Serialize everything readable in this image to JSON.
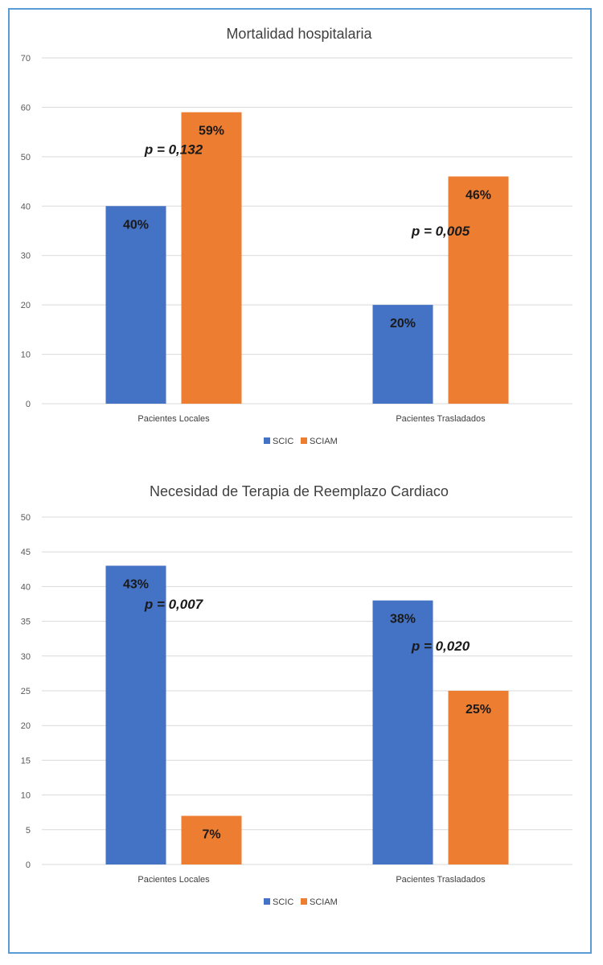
{
  "colors": {
    "scic": "#4472c4",
    "sciam": "#ed7d31",
    "grid": "#d9d9d9",
    "frame": "#5b9bd5"
  },
  "chart_data": [
    {
      "type": "bar",
      "title": "Mortalidad hospitalaria",
      "categories": [
        "Pacientes Locales",
        "Pacientes Trasladados"
      ],
      "series": [
        {
          "name": "SCIC",
          "values": [
            40,
            20
          ],
          "labels": [
            "40%",
            "20%"
          ]
        },
        {
          "name": "SCIAM",
          "values": [
            59,
            46
          ],
          "labels": [
            "59%",
            "46%"
          ]
        }
      ],
      "ylim": [
        0,
        70
      ],
      "yticks": [
        0,
        10,
        20,
        30,
        40,
        50,
        60,
        70
      ],
      "annotations": [
        {
          "text": "p = 0,132",
          "category": 0,
          "y": 51.5
        },
        {
          "text": "p = 0,005",
          "category": 1,
          "y": 35
        }
      ],
      "grid": true,
      "legend": "bottom"
    },
    {
      "type": "bar",
      "title": "Necesidad de Terapia de Reemplazo Cardiaco",
      "categories": [
        "Pacientes Locales",
        "Pacientes Trasladados"
      ],
      "series": [
        {
          "name": "SCIC",
          "values": [
            43,
            38
          ],
          "labels": [
            "43%",
            "38%"
          ]
        },
        {
          "name": "SCIAM",
          "values": [
            7,
            25
          ],
          "labels": [
            "7%",
            "25%"
          ]
        }
      ],
      "ylim": [
        0,
        50
      ],
      "yticks": [
        0,
        5,
        10,
        15,
        20,
        25,
        30,
        35,
        40,
        45,
        50
      ],
      "annotations": [
        {
          "text": "p = 0,007",
          "category": 0,
          "y": 37.5
        },
        {
          "text": "p = 0,020",
          "category": 1,
          "y": 31.5
        }
      ],
      "grid": true,
      "legend": "bottom"
    }
  ]
}
